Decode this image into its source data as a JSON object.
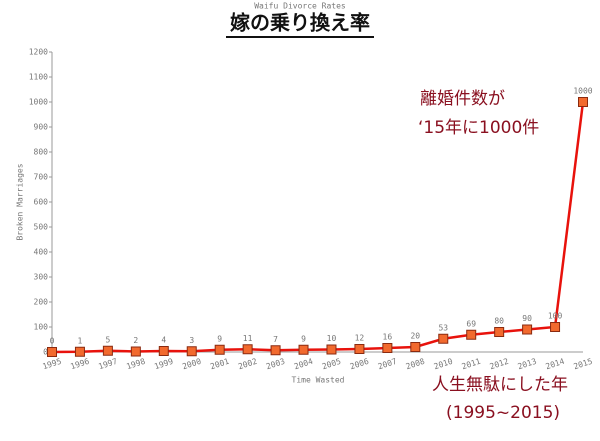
{
  "chart_data": {
    "type": "line",
    "title": "Waifu Divorce Rates",
    "subtitle": "嫁の乗り換え率",
    "ylabel": "Broken Marriages",
    "xlabel": "Time Wasted",
    "annotations": [
      "離婚件数が",
      "‘15年に1000件",
      "人生無駄にした年",
      "(1995~2015)"
    ],
    "categories": [
      "1995",
      "1996",
      "1997",
      "1998",
      "1999",
      "2000",
      "2001",
      "2002",
      "2003",
      "2004",
      "2005",
      "2006",
      "2007",
      "2008",
      "2010",
      "2011",
      "2012",
      "2013",
      "2014",
      "2015"
    ],
    "series": [
      {
        "name": "Broken Marriages",
        "color": "#e8120c",
        "marker_color": "#f26a2e",
        "values": [
          0,
          1,
          5,
          2,
          4,
          3,
          9,
          11,
          7,
          9,
          10,
          12,
          16,
          20,
          53,
          69,
          80,
          90,
          100,
          1000
        ]
      }
    ],
    "ylim": [
      0,
      1200
    ],
    "yticks": [
      0,
      100,
      200,
      300,
      400,
      500,
      600,
      700,
      800,
      900,
      1000,
      1100,
      1200
    ],
    "grid": false
  }
}
